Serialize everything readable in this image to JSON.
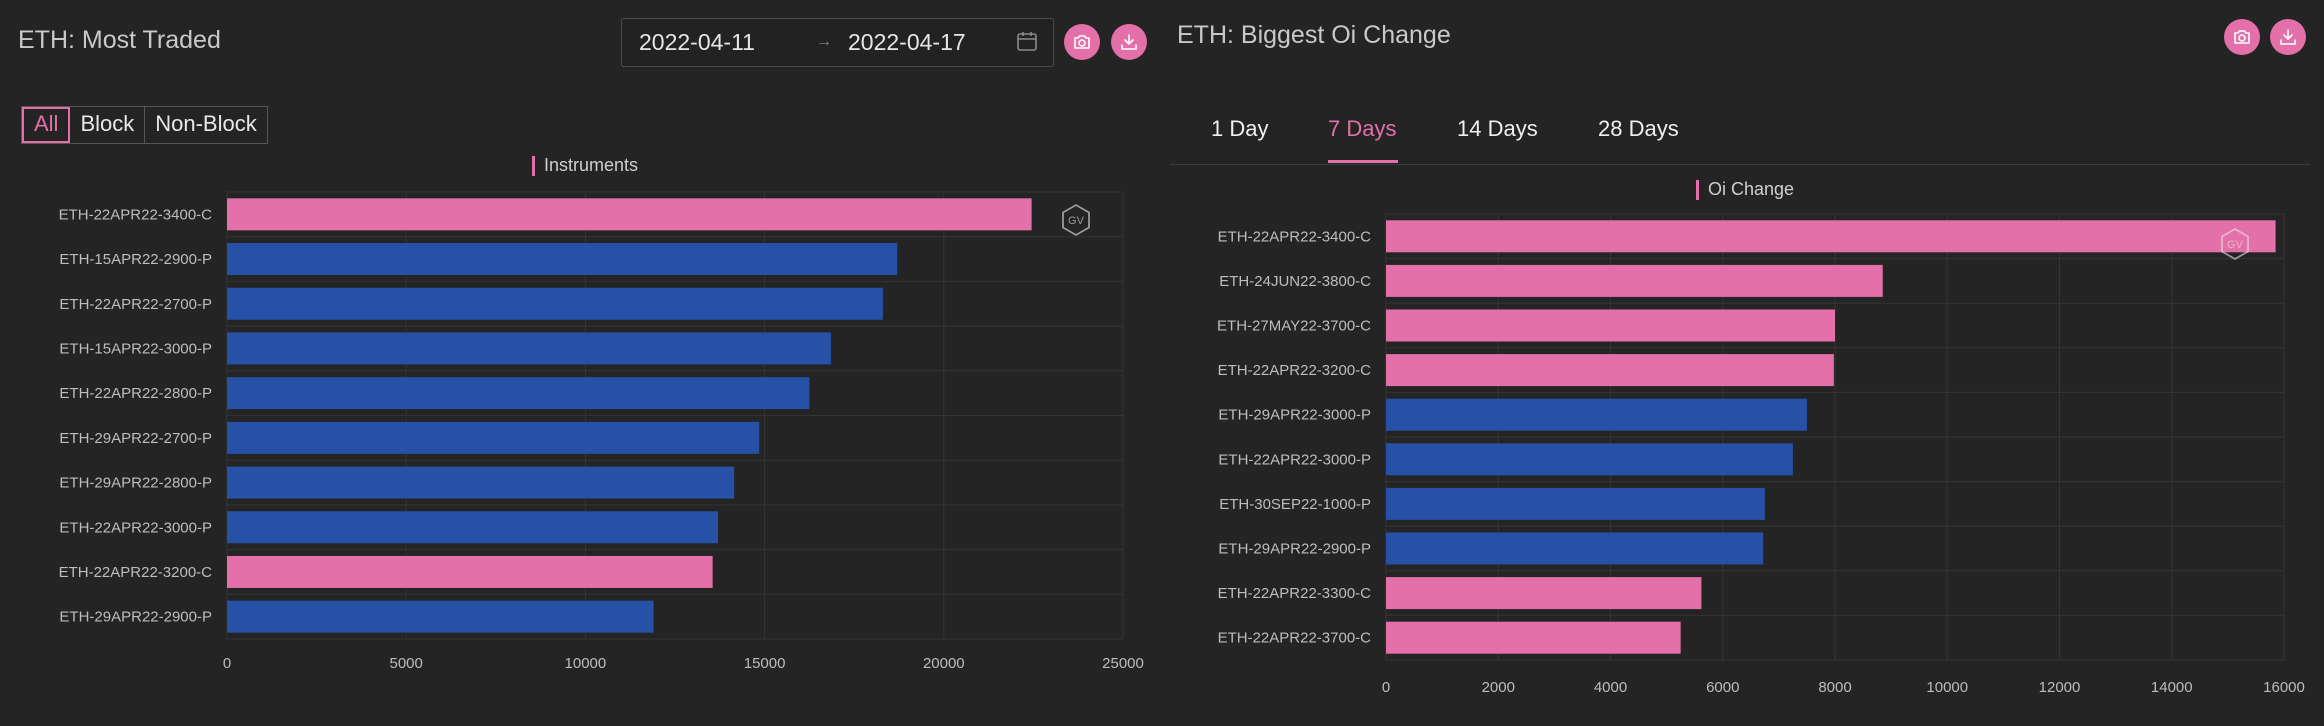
{
  "colors": {
    "pink": "#e470a9",
    "blue": "#2651a6",
    "grid": "#343434",
    "axis_text": "#bdbdbd"
  },
  "left": {
    "title": "ETH: Most Traded",
    "date_from": "2022-04-11",
    "date_to": "2022-04-17",
    "date_separator": "→",
    "icons": [
      "calendar-icon",
      "camera-icon",
      "download-icon"
    ],
    "filters": [
      "All",
      "Block",
      "Non-Block"
    ],
    "active_filter": "All",
    "legend": "Instruments",
    "watermark": "GV"
  },
  "right": {
    "title": "ETH: Biggest Oi Change",
    "icons": [
      "camera-icon",
      "download-icon"
    ],
    "tabs": [
      "1 Day",
      "7 Days",
      "14 Days",
      "28 Days"
    ],
    "active_tab": "7 Days",
    "legend": "Oi Change",
    "watermark": "GV"
  },
  "chart_data": [
    {
      "type": "bar",
      "orientation": "horizontal",
      "title": "ETH: Most Traded",
      "series_label": "Instruments",
      "categories": [
        "ETH-22APR22-3400-C",
        "ETH-15APR22-2900-P",
        "ETH-22APR22-2700-P",
        "ETH-15APR22-3000-P",
        "ETH-22APR22-2800-P",
        "ETH-29APR22-2700-P",
        "ETH-29APR22-2800-P",
        "ETH-22APR22-3000-P",
        "ETH-22APR22-3200-C",
        "ETH-29APR22-2900-P"
      ],
      "values": [
        22450,
        18700,
        18300,
        16850,
        16250,
        14850,
        14150,
        13700,
        13550,
        11900
      ],
      "colors": [
        "pink",
        "blue",
        "blue",
        "blue",
        "blue",
        "blue",
        "blue",
        "blue",
        "pink",
        "blue"
      ],
      "xlim": [
        0,
        25000
      ],
      "xticks": [
        0,
        5000,
        10000,
        15000,
        20000,
        25000
      ],
      "grid": true
    },
    {
      "type": "bar",
      "orientation": "horizontal",
      "title": "ETH: Biggest Oi Change",
      "series_label": "Oi Change",
      "categories": [
        "ETH-22APR22-3400-C",
        "ETH-24JUN22-3800-C",
        "ETH-27MAY22-3700-C",
        "ETH-22APR22-3200-C",
        "ETH-29APR22-3000-P",
        "ETH-22APR22-3000-P",
        "ETH-30SEP22-1000-P",
        "ETH-29APR22-2900-P",
        "ETH-22APR22-3300-C",
        "ETH-22APR22-3700-C"
      ],
      "values": [
        15850,
        8850,
        8000,
        7980,
        7500,
        7250,
        6750,
        6720,
        5620,
        5250
      ],
      "colors": [
        "pink",
        "pink",
        "pink",
        "pink",
        "blue",
        "blue",
        "blue",
        "blue",
        "pink",
        "pink"
      ],
      "xlim": [
        0,
        16000
      ],
      "xticks": [
        0,
        2000,
        4000,
        6000,
        8000,
        10000,
        12000,
        14000,
        16000
      ],
      "grid": true
    }
  ]
}
